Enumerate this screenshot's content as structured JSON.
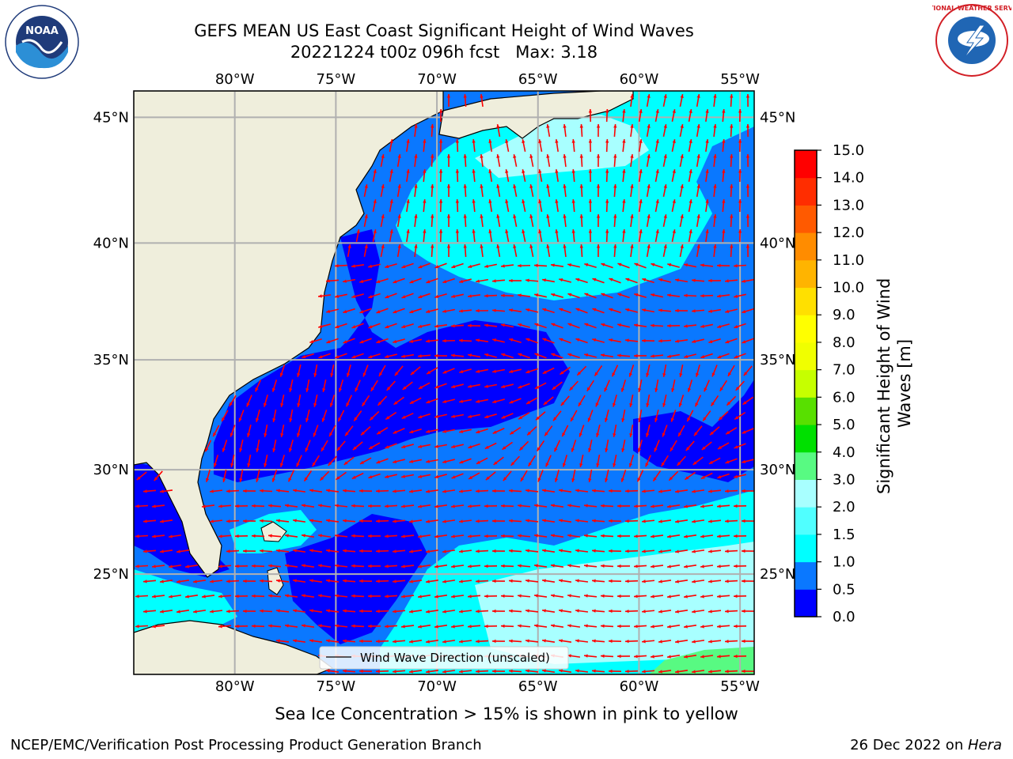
{
  "title": {
    "line1": "GEFS MEAN US East Coast Significant Height of Wind Waves",
    "line2": "20221224 t00z 096h fcst   Max: 3.18"
  },
  "caption": "Sea Ice Concentration > 15% is shown in pink to yellow",
  "footer": {
    "left": "NCEP/EMC/Verification Post Processing Product Generation Branch",
    "date": "26 Dec 2022 on ",
    "machine": "Hera"
  },
  "logos": {
    "noaa_text": "NOAA",
    "noaa_ring": "NATIONAL OCEANIC AND ATMOSPHERIC ADMINISTRATION · U.S. DEPARTMENT OF COMMERCE",
    "nws_ring": "NATIONAL WEATHER SERVICE"
  },
  "map": {
    "lon_labels": [
      "80°W",
      "75°W",
      "70°W",
      "65°W",
      "60°W",
      "55°W"
    ],
    "lat_labels": [
      "45°N",
      "40°N",
      "35°N",
      "30°N",
      "25°N"
    ],
    "lon_values": [
      -80,
      -75,
      -70,
      -65,
      -60,
      -55
    ],
    "lat_values": [
      45,
      40,
      35,
      30,
      25
    ],
    "lon_range": [
      -85,
      -54.3
    ],
    "lat_range": [
      20,
      46
    ],
    "land_color": "#efeedc",
    "legend_label": "Wind Wave Direction (unscaled)",
    "arrow_color": "#ff0000"
  },
  "colorbar": {
    "label": "Significant Height of Wind Waves [m]",
    "ticks": [
      "0.0",
      "0.5",
      "1.0",
      "1.5",
      "2.0",
      "3.0",
      "4.0",
      "5.0",
      "6.0",
      "7.0",
      "8.0",
      "9.0",
      "10.0",
      "11.0",
      "12.0",
      "13.0",
      "14.0",
      "15.0"
    ],
    "colors": [
      "#0000ff",
      "#0a78ff",
      "#00ffff",
      "#50ffff",
      "#a8ffff",
      "#58fa82",
      "#00e000",
      "#58e000",
      "#c6ff00",
      "#f0ff00",
      "#ffff00",
      "#ffe000",
      "#ffb400",
      "#ff8c00",
      "#ff5a00",
      "#ff2d00",
      "#ff0000"
    ]
  }
}
